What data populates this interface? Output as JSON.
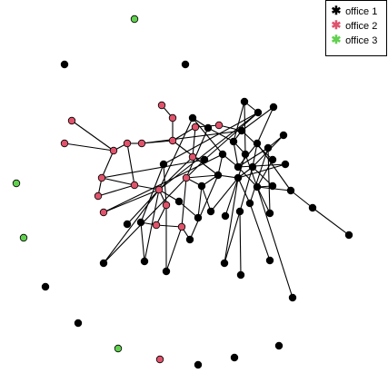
{
  "legend": {
    "entries": [
      {
        "label": "office 1",
        "color": "#000000"
      },
      {
        "label": "office 2",
        "color": "#df536b"
      },
      {
        "label": "office 3",
        "color": "#61d04f"
      }
    ]
  },
  "network": {
    "node_colors": {
      "office1": "#000000",
      "office2": "#df536b",
      "office3": "#61d04f"
    }
  }
}
